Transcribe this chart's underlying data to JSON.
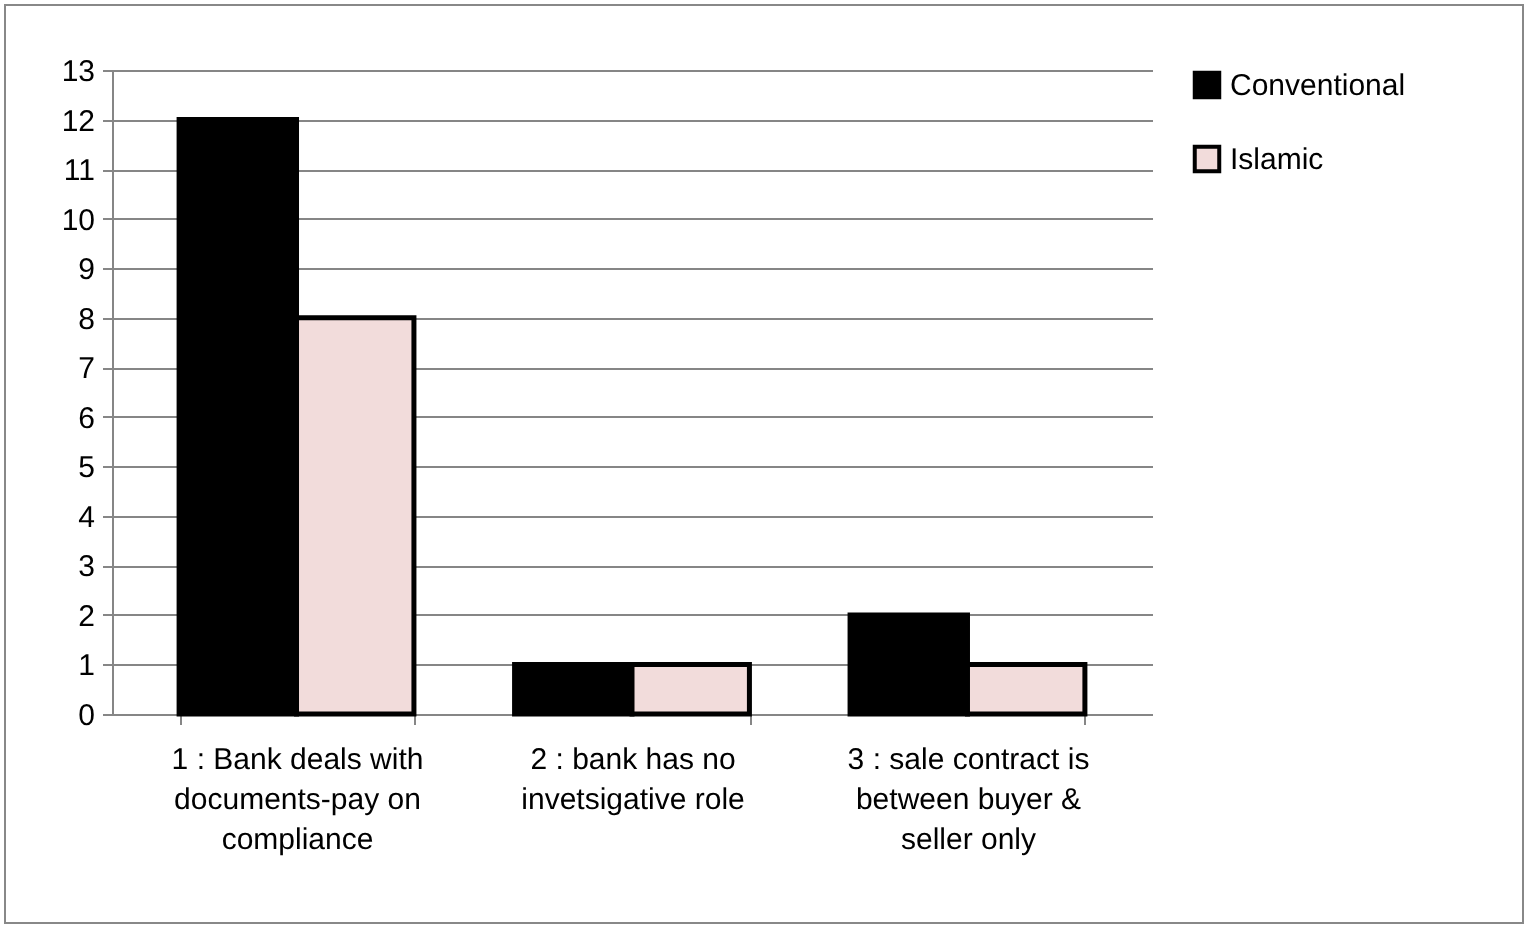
{
  "chart_data": {
    "type": "bar",
    "categories": [
      "1 : Bank deals with documents-pay on compliance",
      "2 : bank has no invetsigative role",
      "3 : sale contract is between buyer & seller only"
    ],
    "series": [
      {
        "name": "Conventional",
        "color": "#000000",
        "values": [
          12,
          1,
          2
        ]
      },
      {
        "name": "Islamic",
        "color": "#f2dcdb",
        "values": [
          8,
          1,
          1
        ]
      }
    ],
    "ylim": [
      0,
      13
    ],
    "yticks": [
      0,
      1,
      2,
      3,
      4,
      5,
      6,
      7,
      8,
      9,
      10,
      11,
      12,
      13
    ],
    "grid": "y",
    "legend": "right"
  }
}
